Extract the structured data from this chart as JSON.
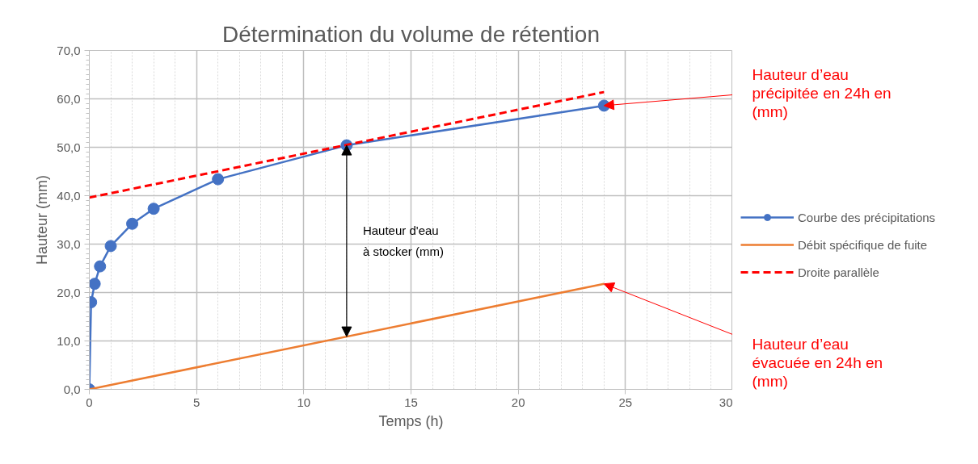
{
  "chart_data": {
    "type": "line",
    "title": "Détermination du volume de rétention",
    "xlabel": "Temps (h)",
    "ylabel": "Hauteur (mm)",
    "xlim": [
      0,
      30
    ],
    "xticks": [
      0,
      5,
      10,
      15,
      20,
      25,
      30
    ],
    "ylim": [
      0,
      70
    ],
    "yticks": [
      {
        "value": 0,
        "label": "0,0"
      },
      {
        "value": 10,
        "label": "10,0"
      },
      {
        "value": 20,
        "label": "20,0"
      },
      {
        "value": 30,
        "label": "30,0"
      },
      {
        "value": 40,
        "label": "40,0"
      },
      {
        "value": 50,
        "label": "50,0"
      },
      {
        "value": 60,
        "label": "60,0"
      },
      {
        "value": 70,
        "label": "70,0"
      }
    ],
    "grid": true,
    "legend": "right",
    "series": [
      {
        "name": "Courbe des précipitations",
        "color": "#4472c4",
        "marker": "circle",
        "line_style": "solid",
        "x": [
          0,
          0.083,
          0.25,
          0.5,
          1,
          2,
          3,
          6,
          12,
          24
        ],
        "values": [
          0,
          18.0,
          21.8,
          25.4,
          29.6,
          34.2,
          37.3,
          43.4,
          50.4,
          58.6
        ]
      },
      {
        "name": "Débit spécifique de fuite",
        "color": "#ed7d31",
        "marker": "none",
        "line_style": "solid",
        "x": [
          0,
          24
        ],
        "values": [
          0,
          21.8
        ]
      },
      {
        "name": "Droite parallèle",
        "color": "#ff0000",
        "marker": "none",
        "line_style": "dashed",
        "x": [
          0,
          24
        ],
        "values": [
          39.6,
          61.4
        ]
      }
    ],
    "annotations": [
      "Hauteur d'eau\nà stocker (mm)",
      {
        "text": "Hauteur d’eau\nprécipitée en 24h en\n(mm)",
        "x": 24,
        "y": 58.6
      },
      {
        "text": "Hauteur d’eau\névacuée en 24h en\n(mm)",
        "x": 24,
        "y": 21.8
      }
    ]
  }
}
